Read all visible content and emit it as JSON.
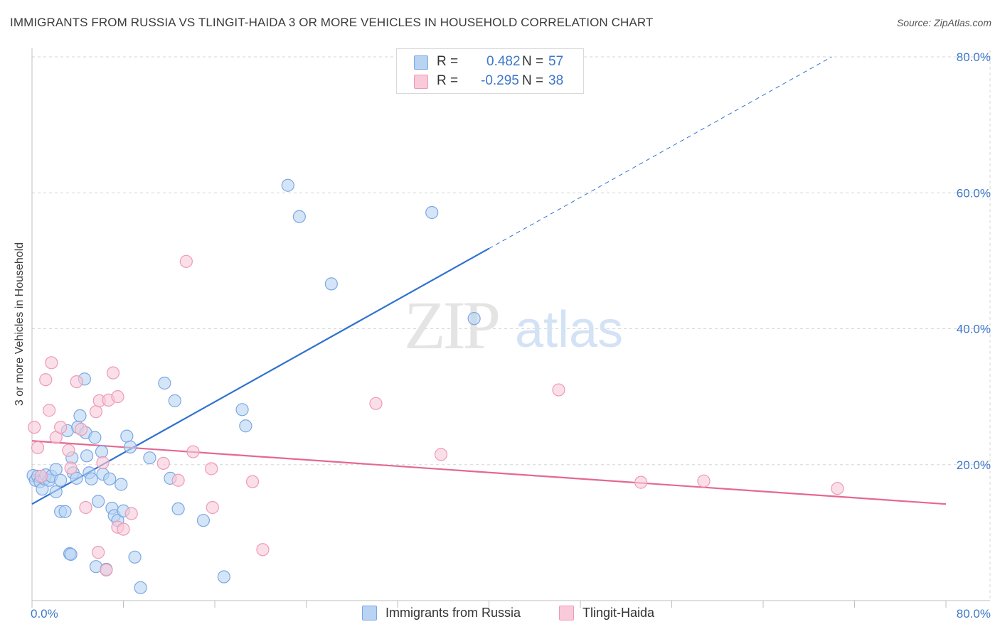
{
  "title": "IMMIGRANTS FROM RUSSIA VS TLINGIT-HAIDA 3 OR MORE VEHICLES IN HOUSEHOLD CORRELATION CHART",
  "source": "Source: ZipAtlas.com",
  "watermark": {
    "zip": "ZIP",
    "atlas": "atlas"
  },
  "legend": {
    "rows": [
      {
        "r_label": "R =",
        "r_value": "0.482",
        "n_label": "N =",
        "n_value": "57"
      },
      {
        "r_label": "R =",
        "r_value": "-0.295",
        "n_label": "N =",
        "n_value": "38"
      }
    ]
  },
  "chart_data": {
    "type": "scatter",
    "title": "IMMIGRANTS FROM RUSSIA VS TLINGIT-HAIDA 3 OR MORE VEHICLES IN HOUSEHOLD CORRELATION CHART",
    "xlabel": "",
    "ylabel": "3 or more Vehicles in Household",
    "xlim": [
      0,
      80
    ],
    "ylim": [
      0,
      80
    ],
    "x_tick_labels": [
      "0.0%",
      "80.0%"
    ],
    "y_ticks": [
      20,
      40,
      60,
      80
    ],
    "y_tick_labels": [
      "20.0%",
      "40.0%",
      "60.0%",
      "80.0%"
    ],
    "series": [
      {
        "name": "Immigrants from Russia",
        "color": "#7fb0e8",
        "line_color": "#2f72d0",
        "trend": {
          "x0": 0,
          "y0": 14.2,
          "x1": 40,
          "y1": 51.8,
          "dash_to_x": 70,
          "dash_to_y": 80
        },
        "points": [
          [
            0.1,
            18.4
          ],
          [
            0.3,
            17.7
          ],
          [
            0.5,
            18.3
          ],
          [
            0.7,
            17.5
          ],
          [
            0.9,
            16.4
          ],
          [
            1.1,
            17.9
          ],
          [
            1.2,
            18.5
          ],
          [
            1.5,
            17.7
          ],
          [
            1.7,
            18.3
          ],
          [
            2.1,
            19.3
          ],
          [
            2.1,
            16.0
          ],
          [
            2.5,
            13.1
          ],
          [
            2.5,
            17.7
          ],
          [
            2.9,
            13.1
          ],
          [
            3.1,
            25.0
          ],
          [
            3.3,
            6.9
          ],
          [
            3.4,
            6.8
          ],
          [
            3.5,
            21.0
          ],
          [
            3.6,
            18.8
          ],
          [
            3.9,
            18.0
          ],
          [
            4.0,
            25.5
          ],
          [
            4.2,
            27.2
          ],
          [
            4.6,
            32.6
          ],
          [
            4.7,
            24.7
          ],
          [
            4.8,
            21.3
          ],
          [
            5.0,
            18.8
          ],
          [
            5.2,
            17.9
          ],
          [
            5.5,
            24.0
          ],
          [
            5.6,
            5.0
          ],
          [
            5.8,
            14.6
          ],
          [
            6.1,
            21.9
          ],
          [
            6.2,
            18.6
          ],
          [
            6.5,
            4.6
          ],
          [
            6.8,
            17.9
          ],
          [
            7.0,
            13.6
          ],
          [
            7.2,
            12.5
          ],
          [
            7.5,
            11.8
          ],
          [
            7.8,
            17.1
          ],
          [
            8.0,
            13.2
          ],
          [
            8.3,
            24.2
          ],
          [
            8.6,
            22.6
          ],
          [
            9.0,
            6.4
          ],
          [
            9.5,
            1.9
          ],
          [
            10.3,
            21.0
          ],
          [
            11.6,
            32.0
          ],
          [
            12.1,
            18.0
          ],
          [
            12.5,
            29.4
          ],
          [
            12.8,
            13.5
          ],
          [
            15.0,
            11.8
          ],
          [
            16.8,
            3.5
          ],
          [
            18.4,
            28.1
          ],
          [
            18.7,
            25.7
          ],
          [
            22.4,
            61.1
          ],
          [
            23.4,
            56.5
          ],
          [
            26.2,
            46.6
          ],
          [
            35.0,
            57.1
          ],
          [
            38.7,
            41.5
          ]
        ]
      },
      {
        "name": "Tlingit-Haida",
        "color": "#f4a7c0",
        "line_color": "#e46893",
        "trend": {
          "x0": 0,
          "y0": 23.5,
          "x1": 80,
          "y1": 14.2
        },
        "points": [
          [
            0.2,
            25.5
          ],
          [
            0.5,
            22.5
          ],
          [
            0.8,
            18.3
          ],
          [
            1.2,
            32.5
          ],
          [
            1.5,
            28.0
          ],
          [
            1.7,
            35.0
          ],
          [
            2.1,
            24.0
          ],
          [
            2.5,
            25.5
          ],
          [
            3.2,
            22.1
          ],
          [
            3.4,
            19.5
          ],
          [
            3.9,
            32.2
          ],
          [
            4.3,
            25.2
          ],
          [
            4.7,
            13.7
          ],
          [
            5.6,
            27.8
          ],
          [
            5.8,
            7.1
          ],
          [
            5.9,
            29.4
          ],
          [
            6.2,
            20.3
          ],
          [
            6.5,
            4.5
          ],
          [
            6.7,
            29.5
          ],
          [
            7.1,
            33.5
          ],
          [
            7.5,
            30.0
          ],
          [
            7.5,
            10.8
          ],
          [
            8.0,
            10.5
          ],
          [
            8.7,
            12.8
          ],
          [
            11.5,
            20.2
          ],
          [
            12.8,
            17.7
          ],
          [
            13.5,
            49.9
          ],
          [
            14.1,
            21.9
          ],
          [
            15.7,
            19.4
          ],
          [
            15.8,
            13.7
          ],
          [
            19.3,
            17.5
          ],
          [
            20.2,
            7.5
          ],
          [
            30.1,
            29.0
          ],
          [
            35.8,
            21.5
          ],
          [
            46.1,
            31.0
          ],
          [
            53.3,
            17.4
          ],
          [
            58.8,
            17.6
          ],
          [
            70.5,
            16.5
          ]
        ]
      }
    ]
  },
  "bottom_legend": [
    {
      "label": "Immigrants from Russia"
    },
    {
      "label": "Tlingit-Haida"
    }
  ],
  "colors": {
    "blue_fill": "#b9d3f3",
    "blue_stroke": "#7aa8e3",
    "pink_fill": "#f9cad9",
    "pink_stroke": "#ee9ab6",
    "axis_text": "#3d77c9",
    "grid": "#d6d6d6"
  }
}
